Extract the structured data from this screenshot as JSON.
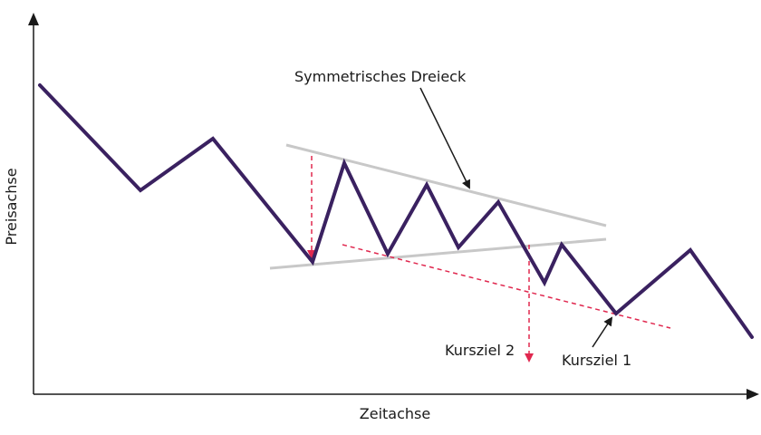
{
  "axes": {
    "x_label": "Zeitachse",
    "y_label": "Preisachse"
  },
  "annotations": {
    "pattern_label": "Symmetrisches Dreieck",
    "target_1": "Kursziel 1",
    "target_2": "Kursziel 2"
  },
  "colors": {
    "price_line": "#3a2160",
    "trend_lines": "#c8c8c8",
    "target_markers": "#e0284f",
    "axis": "#1a1a1a"
  }
}
